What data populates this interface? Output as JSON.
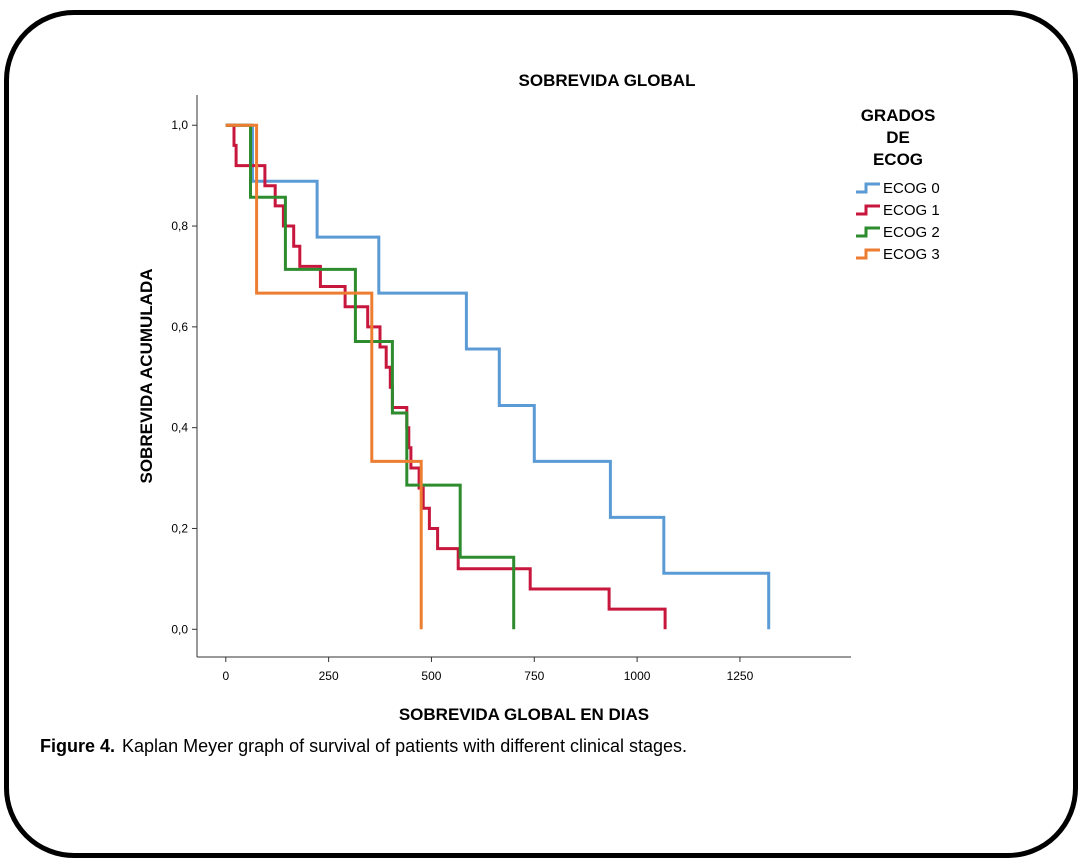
{
  "figure": {
    "caption_label": "Figure 4.",
    "caption_text": "Kaplan Meyer graph of survival of patients with different clinical stages."
  },
  "chart_data": {
    "type": "line",
    "step": true,
    "title": "SOBREVIDA GLOBAL",
    "xlabel": "SOBREVIDA GLOBAL EN DIAS",
    "ylabel": "SOBREVIDA ACUMULADA",
    "xlim": [
      -70,
      1520
    ],
    "ylim": [
      -0.055,
      1.06
    ],
    "xticks": [
      0,
      250,
      500,
      750,
      1000,
      1250
    ],
    "yticks": [
      0.0,
      0.2,
      0.4,
      0.6,
      0.8,
      1.0
    ],
    "xtick_labels": [
      "0",
      "250",
      "500",
      "750",
      "1000",
      "1250"
    ],
    "ytick_labels": [
      "0,0",
      "0,2",
      "0,4",
      "0,6",
      "0,8",
      "1,0"
    ],
    "grid": false,
    "legend": {
      "title_lines": [
        "GRADOS",
        "DE",
        "ECOG"
      ],
      "placement": "top-right"
    },
    "series": [
      {
        "name": "ECOG 0",
        "color": "#5b9bd5",
        "points": [
          [
            0,
            1.0
          ],
          [
            65,
            1.0
          ],
          [
            65,
            0.889
          ],
          [
            222,
            0.889
          ],
          [
            222,
            0.778
          ],
          [
            372,
            0.778
          ],
          [
            372,
            0.667
          ],
          [
            585,
            0.667
          ],
          [
            585,
            0.556
          ],
          [
            665,
            0.556
          ],
          [
            665,
            0.444
          ],
          [
            750,
            0.444
          ],
          [
            750,
            0.333
          ],
          [
            935,
            0.333
          ],
          [
            935,
            0.222
          ],
          [
            1065,
            0.222
          ],
          [
            1065,
            0.111
          ],
          [
            1320,
            0.111
          ],
          [
            1320,
            0.0
          ]
        ]
      },
      {
        "name": "ECOG 1",
        "color": "#c8173d",
        "points": [
          [
            0,
            1.0
          ],
          [
            20,
            1.0
          ],
          [
            20,
            0.96
          ],
          [
            25,
            0.96
          ],
          [
            25,
            0.92
          ],
          [
            95,
            0.92
          ],
          [
            95,
            0.88
          ],
          [
            120,
            0.88
          ],
          [
            120,
            0.84
          ],
          [
            140,
            0.84
          ],
          [
            140,
            0.8
          ],
          [
            165,
            0.8
          ],
          [
            165,
            0.76
          ],
          [
            180,
            0.76
          ],
          [
            180,
            0.72
          ],
          [
            230,
            0.72
          ],
          [
            230,
            0.68
          ],
          [
            290,
            0.68
          ],
          [
            290,
            0.64
          ],
          [
            345,
            0.64
          ],
          [
            345,
            0.6
          ],
          [
            375,
            0.6
          ],
          [
            375,
            0.56
          ],
          [
            390,
            0.56
          ],
          [
            390,
            0.52
          ],
          [
            400,
            0.52
          ],
          [
            400,
            0.48
          ],
          [
            405,
            0.48
          ],
          [
            405,
            0.44
          ],
          [
            440,
            0.44
          ],
          [
            440,
            0.4
          ],
          [
            445,
            0.4
          ],
          [
            445,
            0.36
          ],
          [
            450,
            0.36
          ],
          [
            450,
            0.32
          ],
          [
            470,
            0.32
          ],
          [
            470,
            0.28
          ],
          [
            480,
            0.28
          ],
          [
            480,
            0.24
          ],
          [
            495,
            0.24
          ],
          [
            495,
            0.2
          ],
          [
            515,
            0.2
          ],
          [
            515,
            0.16
          ],
          [
            565,
            0.16
          ],
          [
            565,
            0.12
          ],
          [
            740,
            0.12
          ],
          [
            740,
            0.08
          ],
          [
            932,
            0.08
          ],
          [
            932,
            0.04
          ],
          [
            1068,
            0.04
          ],
          [
            1068,
            0.0
          ]
        ]
      },
      {
        "name": "ECOG 2",
        "color": "#2e8b2e",
        "points": [
          [
            0,
            1.0
          ],
          [
            60,
            1.0
          ],
          [
            60,
            0.857
          ],
          [
            145,
            0.857
          ],
          [
            145,
            0.714
          ],
          [
            315,
            0.714
          ],
          [
            315,
            0.571
          ],
          [
            405,
            0.571
          ],
          [
            405,
            0.429
          ],
          [
            440,
            0.429
          ],
          [
            440,
            0.286
          ],
          [
            570,
            0.286
          ],
          [
            570,
            0.143
          ],
          [
            700,
            0.143
          ],
          [
            700,
            0.0
          ]
        ]
      },
      {
        "name": "ECOG 3",
        "color": "#ed7d31",
        "points": [
          [
            0,
            1.0
          ],
          [
            75,
            1.0
          ],
          [
            75,
            0.667
          ],
          [
            355,
            0.667
          ],
          [
            355,
            0.333
          ],
          [
            475,
            0.333
          ],
          [
            475,
            0.0
          ]
        ]
      }
    ]
  }
}
